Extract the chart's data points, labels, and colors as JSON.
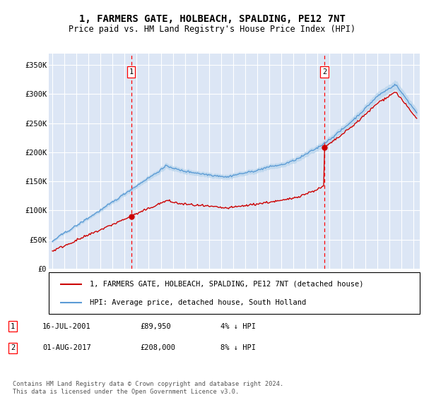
{
  "title": "1, FARMERS GATE, HOLBEACH, SPALDING, PE12 7NT",
  "subtitle": "Price paid vs. HM Land Registry's House Price Index (HPI)",
  "background_color": "#dce6f5",
  "ylabel_ticks": [
    "£0",
    "£50K",
    "£100K",
    "£150K",
    "£200K",
    "£250K",
    "£300K",
    "£350K"
  ],
  "ytick_values": [
    0,
    50000,
    100000,
    150000,
    200000,
    250000,
    300000,
    350000
  ],
  "ylim": [
    0,
    370000
  ],
  "vline1_x": 2001.54,
  "vline2_x": 2017.58,
  "marker1_price": 89950,
  "marker2_price": 208000,
  "legend_line1": "1, FARMERS GATE, HOLBEACH, SPALDING, PE12 7NT (detached house)",
  "legend_line2": "HPI: Average price, detached house, South Holland",
  "table_row1": [
    "1",
    "16-JUL-2001",
    "£89,950",
    "4% ↓ HPI"
  ],
  "table_row2": [
    "2",
    "01-AUG-2017",
    "£208,000",
    "8% ↓ HPI"
  ],
  "footer": "Contains HM Land Registry data © Crown copyright and database right 2024.\nThis data is licensed under the Open Government Licence v3.0.",
  "red_color": "#cc0000",
  "blue_color": "#5b9bd5",
  "light_blue_fill": "#bdd7ee",
  "vline_color": "#ff0000",
  "grid_color": "#ffffff",
  "xlim_start": 1994.7,
  "xlim_end": 2025.5
}
